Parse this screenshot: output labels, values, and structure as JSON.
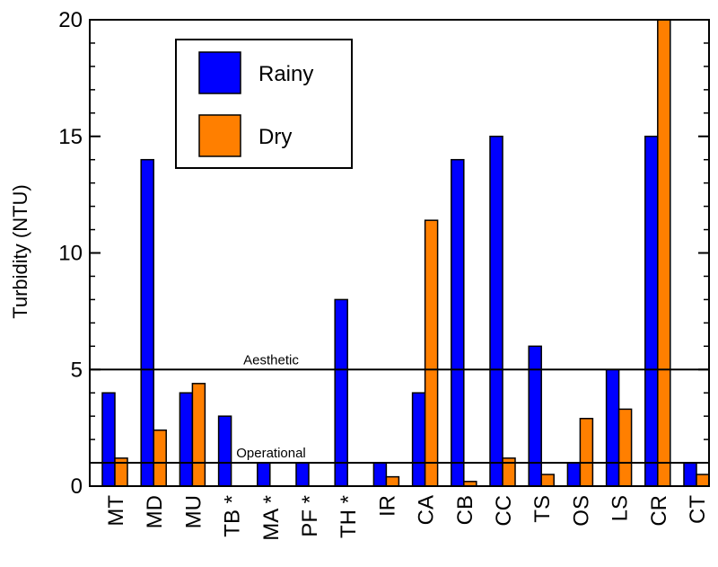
{
  "chart_data": {
    "type": "bar",
    "ylabel": "Turbidity (NTU)",
    "ylim": [
      0,
      20
    ],
    "yticks": [
      0,
      5,
      10,
      15,
      20
    ],
    "categories": [
      "MT",
      "MD",
      "MU",
      "TB *",
      "MA *",
      "PF *",
      "TH *",
      "IR",
      "CA",
      "CB",
      "CC",
      "TS",
      "OS",
      "LS",
      "CR",
      "CT"
    ],
    "series": [
      {
        "name": "Rainy",
        "color": "#0000ff",
        "values": [
          4,
          14,
          4,
          3,
          1,
          1,
          8,
          1,
          4,
          14,
          15,
          6,
          1,
          5,
          15,
          1
        ]
      },
      {
        "name": "Dry",
        "color": "#ff7f00",
        "values": [
          1.2,
          2.4,
          4.4,
          null,
          null,
          null,
          null,
          0.4,
          11.4,
          0.2,
          1.2,
          0.5,
          2.9,
          3.3,
          20,
          0.5
        ]
      }
    ],
    "reference_lines": [
      {
        "label": "Aesthetic",
        "value": 5
      },
      {
        "label": "Operational",
        "value": 1
      }
    ],
    "legend": {
      "position": "top-left",
      "entries": [
        "Rainy",
        "Dry"
      ]
    }
  }
}
